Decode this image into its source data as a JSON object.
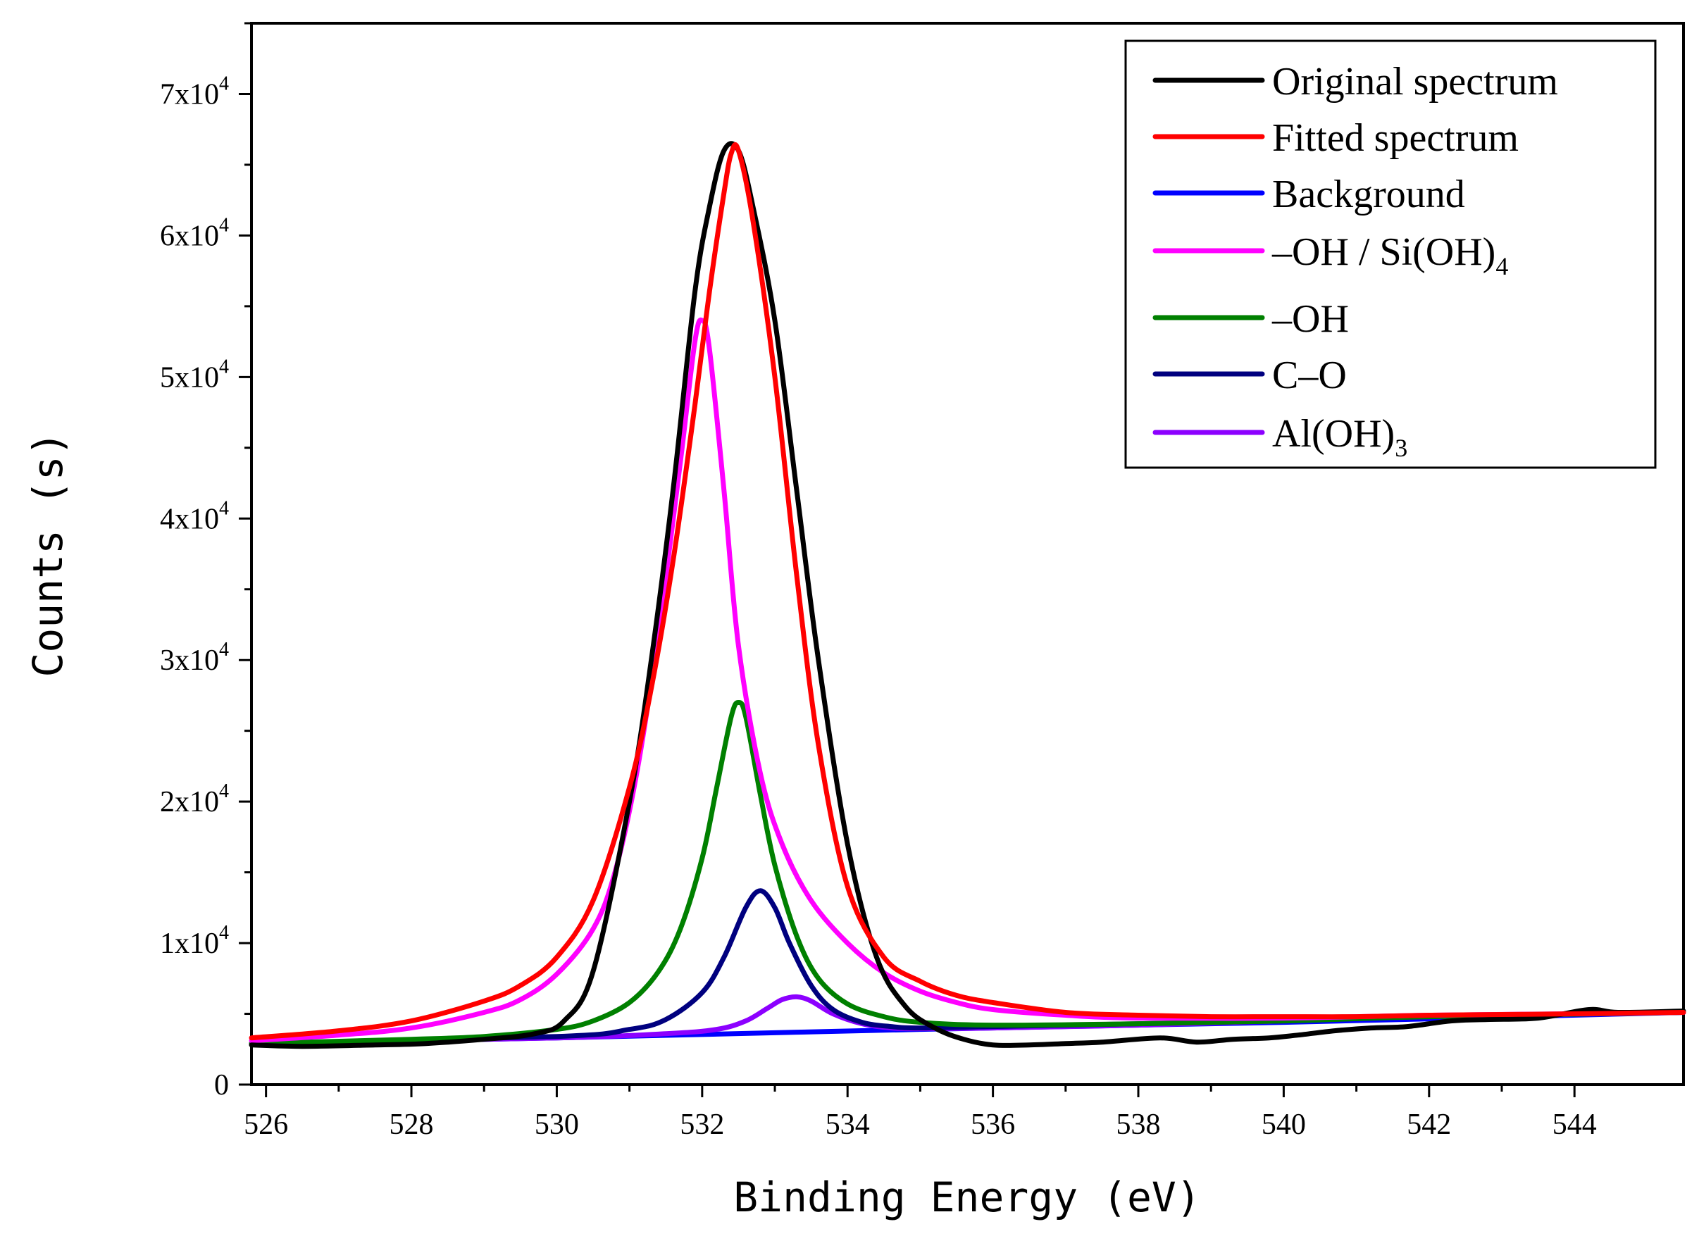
{
  "chart_data": {
    "type": "line",
    "title": "",
    "xlabel": "Binding Energy  (eV)",
    "ylabel": "Counts  (s)",
    "xlim": [
      525.8,
      545.5
    ],
    "ylim": [
      0,
      75000
    ],
    "xticks": [
      526,
      528,
      530,
      532,
      534,
      536,
      538,
      540,
      542,
      544
    ],
    "xtick_labels": [
      "526",
      "528",
      "530",
      "532",
      "534",
      "536",
      "538",
      "540",
      "542",
      "544"
    ],
    "yticks": [
      0,
      10000,
      20000,
      30000,
      40000,
      50000,
      60000,
      70000
    ],
    "ytick_labels": [
      {
        "mant": "0",
        "exp": ""
      },
      {
        "mant": "1x10",
        "exp": "4"
      },
      {
        "mant": "2x10",
        "exp": "4"
      },
      {
        "mant": "3x10",
        "exp": "4"
      },
      {
        "mant": "4x10",
        "exp": "4"
      },
      {
        "mant": "5x10",
        "exp": "4"
      },
      {
        "mant": "6x10",
        "exp": "4"
      },
      {
        "mant": "7x10",
        "exp": "4"
      }
    ],
    "grid": false,
    "legend_position": "top-right",
    "series": [
      {
        "name": "Original spectrum",
        "legend": {
          "text": "Original spectrum",
          "sub": ""
        },
        "color": "#000000",
        "x": [
          525.8,
          526.5,
          527.5,
          528.2,
          529,
          529.7,
          530.1,
          530.5,
          531,
          531.3,
          531.6,
          531.9,
          532.1,
          532.3,
          532.5,
          532.7,
          533,
          533.3,
          533.6,
          534,
          534.4,
          534.8,
          535.2,
          535.6,
          536,
          536.5,
          537,
          537.5,
          538.3,
          538.8,
          539.3,
          539.8,
          540.2,
          540.7,
          541.2,
          541.7,
          542.3,
          542.8,
          543.5,
          544.2,
          544.6,
          545.5
        ],
        "y": [
          2800,
          2700,
          2800,
          2900,
          3200,
          3600,
          4500,
          8000,
          20000,
          30000,
          42000,
          56000,
          62000,
          66000,
          66000,
          62000,
          54000,
          42000,
          30000,
          17000,
          9000,
          5500,
          4000,
          3200,
          2800,
          2800,
          2900,
          3000,
          3300,
          3000,
          3200,
          3300,
          3500,
          3800,
          4000,
          4100,
          4500,
          4600,
          4700,
          5300,
          5100,
          5200
        ]
      },
      {
        "name": "Fitted spectrum",
        "legend": {
          "text": "Fitted spectrum",
          "sub": ""
        },
        "color": "#ff0000",
        "x": [
          525.8,
          527,
          528,
          529,
          529.5,
          530,
          530.5,
          531,
          531.3,
          531.6,
          531.9,
          532.1,
          532.3,
          532.4,
          532.5,
          532.7,
          533,
          533.3,
          533.6,
          534,
          534.5,
          535,
          535.5,
          536,
          537,
          538,
          539,
          540,
          541,
          542,
          543,
          544,
          545.5
        ],
        "y": [
          3300,
          3800,
          4500,
          5900,
          7000,
          9000,
          13000,
          21000,
          28000,
          37000,
          48000,
          56000,
          63000,
          65800,
          66000,
          61000,
          50000,
          36000,
          24000,
          14000,
          9000,
          7300,
          6300,
          5800,
          5100,
          4900,
          4800,
          4800,
          4800,
          4900,
          4950,
          5000,
          5100
        ]
      },
      {
        "name": "Background",
        "legend": {
          "text": "Background",
          "sub": ""
        },
        "color": "#0000ff",
        "x": [
          525.8,
          530,
          535,
          540,
          545.5
        ],
        "y": [
          2900,
          3300,
          3900,
          4400,
          5100
        ]
      },
      {
        "name": "–OH / Si(OH)4",
        "legend": {
          "text": "–OH / Si(OH)",
          "sub": "4"
        },
        "color": "#ff00ff",
        "x": [
          525.8,
          527,
          528,
          529,
          529.5,
          530,
          530.5,
          530.8,
          531.1,
          531.4,
          531.7,
          531.9,
          532,
          532.1,
          532.3,
          532.5,
          532.8,
          533.1,
          533.5,
          534,
          534.5,
          535,
          535.5,
          536,
          537,
          538,
          540,
          542,
          544,
          545.5
        ],
        "y": [
          3100,
          3500,
          4000,
          5100,
          6000,
          7800,
          11000,
          15000,
          22000,
          32000,
          44000,
          52500,
          54000,
          52000,
          42000,
          31000,
          22000,
          17000,
          13000,
          10000,
          7900,
          6600,
          5800,
          5300,
          4900,
          4700,
          4700,
          4900,
          5000,
          5100
        ]
      },
      {
        "name": "–OH",
        "legend": {
          "text": "–OH",
          "sub": ""
        },
        "color": "#008000",
        "x": [
          525.8,
          528,
          529,
          530,
          530.5,
          531,
          531.4,
          531.7,
          532,
          532.2,
          532.4,
          532.5,
          532.6,
          532.8,
          533,
          533.3,
          533.6,
          534,
          534.5,
          535,
          536,
          538,
          540,
          542,
          545.5
        ],
        "y": [
          2900,
          3200,
          3400,
          3900,
          4500,
          5800,
          8000,
          11000,
          16000,
          21000,
          26000,
          27000,
          26000,
          20500,
          15500,
          10500,
          7500,
          5700,
          4800,
          4400,
          4200,
          4300,
          4500,
          4800,
          5100
        ]
      },
      {
        "name": "C–O",
        "legend": {
          "text": "C–O",
          "sub": ""
        },
        "color": "#00007f",
        "x": [
          525.8,
          530,
          531,
          531.5,
          532,
          532.3,
          532.6,
          532.8,
          533,
          533.2,
          533.5,
          533.8,
          534.2,
          534.6,
          535,
          536,
          538,
          540,
          542,
          545.5
        ],
        "y": [
          2900,
          3400,
          3900,
          4600,
          6500,
          9000,
          12500,
          13700,
          12500,
          10000,
          7000,
          5300,
          4400,
          4100,
          4000,
          4100,
          4300,
          4500,
          4800,
          5100
        ]
      },
      {
        "name": "Al(OH)3",
        "legend": {
          "text": "Al(OH)",
          "sub": "3"
        },
        "color": "#8c00ff",
        "x": [
          525.8,
          530,
          531.5,
          532.2,
          532.6,
          532.9,
          533.1,
          533.3,
          533.5,
          533.8,
          534.2,
          534.6,
          535,
          536,
          538,
          540,
          542,
          545.5
        ],
        "y": [
          2900,
          3300,
          3600,
          3900,
          4500,
          5400,
          6000,
          6200,
          5900,
          5000,
          4300,
          4000,
          3950,
          4000,
          4200,
          4500,
          4800,
          5100
        ]
      }
    ]
  }
}
